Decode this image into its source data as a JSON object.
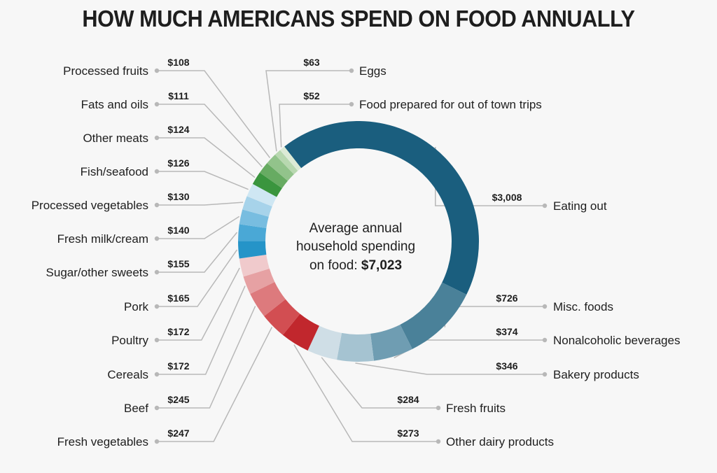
{
  "chart_data": {
    "type": "pie",
    "variant": "donut",
    "title": "HOW MUCH AMERICANS SPEND ON FOOD ANNUALLY",
    "center_label": {
      "line1": "Average annual",
      "line2": "household spending",
      "line3_prefix": "on food: ",
      "line3_value": "$7,023"
    },
    "total": 7023,
    "currency_prefix": "$",
    "slices": [
      {
        "label": "Eating out",
        "value": 3008,
        "value_label": "$3,008",
        "color": "#1a5e7e",
        "side": "right"
      },
      {
        "label": "Misc. foods",
        "value": 726,
        "value_label": "$726",
        "color": "#4a8199",
        "side": "right"
      },
      {
        "label": "Nonalcoholic beverages",
        "value": 374,
        "value_label": "$374",
        "color": "#6f9db2",
        "side": "right"
      },
      {
        "label": "Bakery products",
        "value": 346,
        "value_label": "$346",
        "color": "#a5c3d1",
        "side": "right"
      },
      {
        "label": "Fresh fruits",
        "value": 284,
        "value_label": "$284",
        "color": "#cfdee6",
        "side": "right"
      },
      {
        "label": "Other dairy products",
        "value": 273,
        "value_label": "$273",
        "color": "#c1272d",
        "side": "right"
      },
      {
        "label": "Fresh vegetables",
        "value": 247,
        "value_label": "$247",
        "color": "#d24e52",
        "side": "left"
      },
      {
        "label": "Beef",
        "value": 245,
        "value_label": "$245",
        "color": "#dd7a7d",
        "side": "left"
      },
      {
        "label": "Cereals",
        "value": 172,
        "value_label": "$172",
        "color": "#e6a1a3",
        "side": "left"
      },
      {
        "label": "Poultry",
        "value": 172,
        "value_label": "$172",
        "color": "#f0cacc",
        "side": "left"
      },
      {
        "label": "Pork",
        "value": 165,
        "value_label": "$165",
        "color": "#2594c8",
        "side": "left"
      },
      {
        "label": "Sugar/other sweets",
        "value": 155,
        "value_label": "$155",
        "color": "#4aa8d6",
        "side": "left"
      },
      {
        "label": "Fresh milk/cream",
        "value": 140,
        "value_label": "$140",
        "color": "#78bde0",
        "side": "left"
      },
      {
        "label": "Processed vegetables",
        "value": 130,
        "value_label": "$130",
        "color": "#a7d3ea",
        "side": "left"
      },
      {
        "label": "Fish/seafood",
        "value": 126,
        "value_label": "$126",
        "color": "#cfe7f3",
        "side": "left"
      },
      {
        "label": "Other meats",
        "value": 124,
        "value_label": "$124",
        "color": "#3a953e",
        "side": "left"
      },
      {
        "label": "Fats and oils",
        "value": 111,
        "value_label": "$111",
        "color": "#67ab62",
        "side": "left"
      },
      {
        "label": "Processed fruits",
        "value": 108,
        "value_label": "$108",
        "color": "#92c38b",
        "side": "left"
      },
      {
        "label": "Eggs",
        "value": 63,
        "value_label": "$63",
        "color": "#b8d8b0",
        "side": "top"
      },
      {
        "label": "Food prepared for out of town trips",
        "value": 52,
        "value_label": "$52",
        "color": "#dcebd6",
        "side": "top"
      }
    ],
    "legend": "none",
    "label_placement": "leader-lines"
  }
}
